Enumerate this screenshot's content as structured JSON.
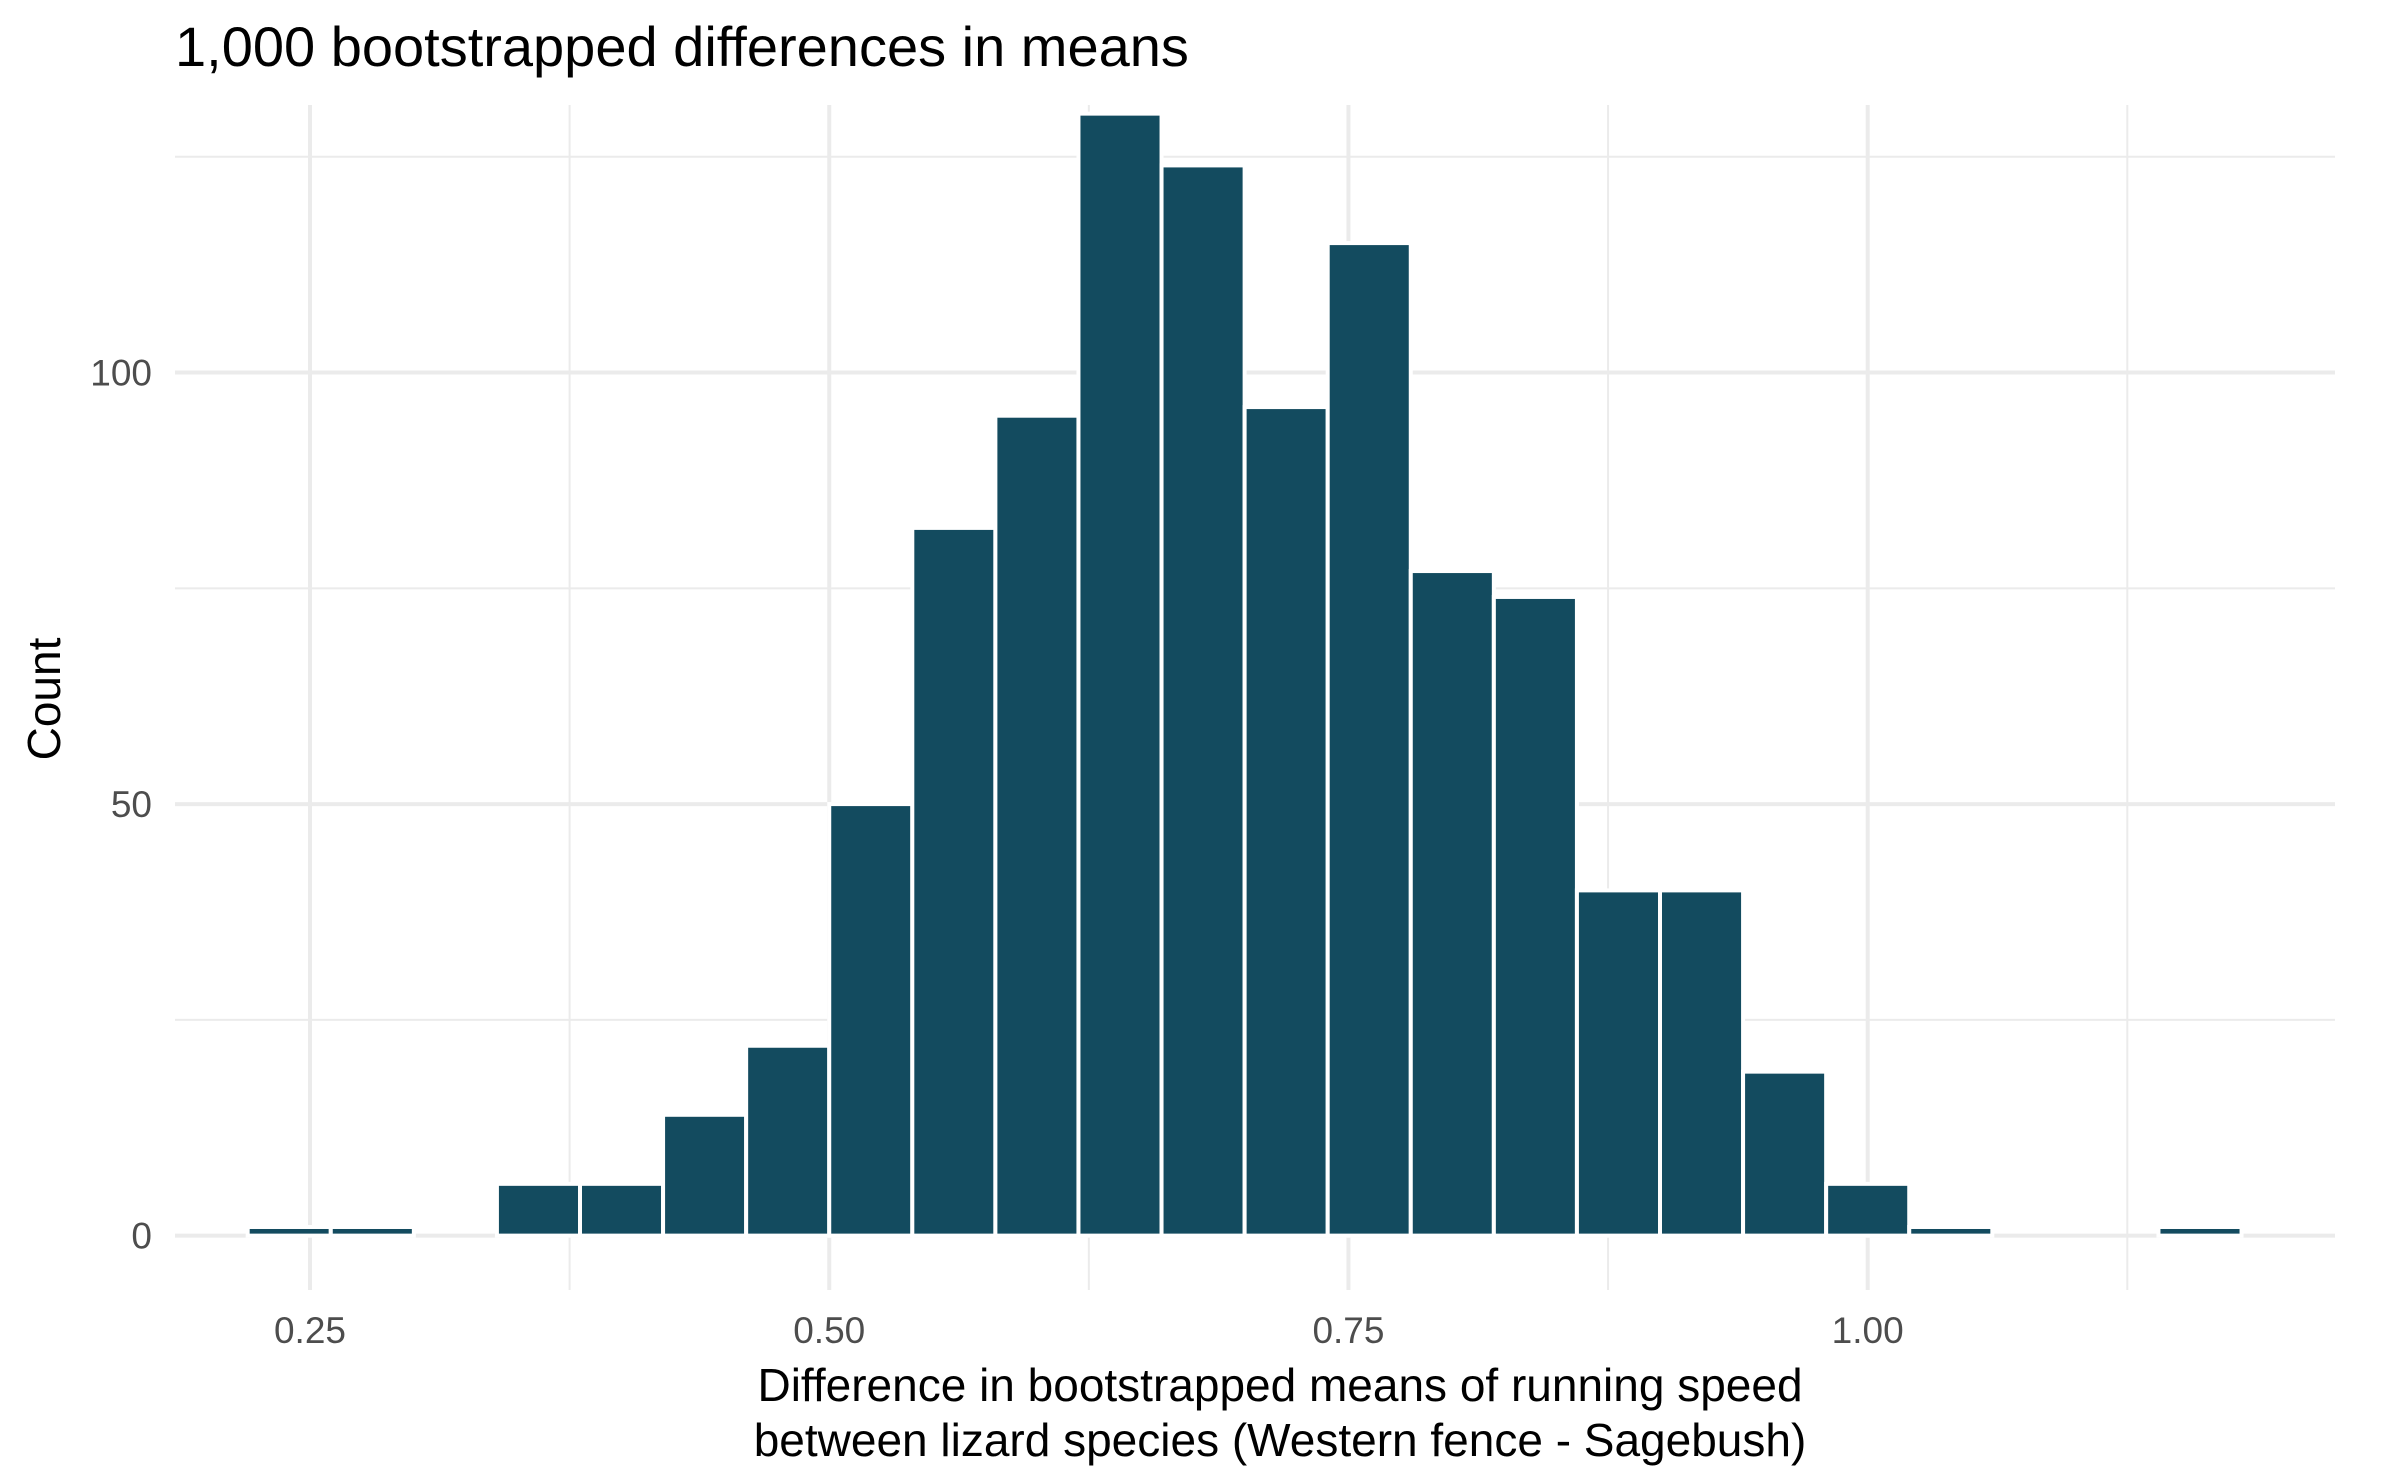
{
  "chart_data": {
    "type": "bar",
    "title": "1,000 bootstrapped differences in means",
    "xlabel": "Difference in bootstrapped means of running speed",
    "xlabel_line2": "between lizard species (Western fence - Sagebush)",
    "ylabel": "Count",
    "xlim": [
      0.185,
      1.225
    ],
    "ylim": [
      -6.3,
      131
    ],
    "x_ticks": [
      0.25,
      0.5,
      0.75,
      1.0
    ],
    "x_tick_labels": [
      "0.25",
      "0.50",
      "0.75",
      "1.00"
    ],
    "x_minor_ticks": [
      0.375,
      0.625,
      0.875,
      1.125
    ],
    "y_ticks": [
      0,
      50,
      100
    ],
    "y_tick_labels": [
      "0",
      "50",
      "100"
    ],
    "y_minor_ticks": [
      25,
      75,
      125
    ],
    "grid": true,
    "bar_color": "#134b5f",
    "bins": [
      {
        "x0": 0.22,
        "x1": 0.26,
        "count": 1
      },
      {
        "x0": 0.26,
        "x1": 0.3,
        "count": 1
      },
      {
        "x0": 0.3,
        "x1": 0.34,
        "count": 0
      },
      {
        "x0": 0.34,
        "x1": 0.38,
        "count": 6
      },
      {
        "x0": 0.38,
        "x1": 0.42,
        "count": 6
      },
      {
        "x0": 0.42,
        "x1": 0.46,
        "count": 14
      },
      {
        "x0": 0.46,
        "x1": 0.5,
        "count": 22
      },
      {
        "x0": 0.5,
        "x1": 0.54,
        "count": 50
      },
      {
        "x0": 0.54,
        "x1": 0.58,
        "count": 82
      },
      {
        "x0": 0.58,
        "x1": 0.62,
        "count": 95
      },
      {
        "x0": 0.62,
        "x1": 0.66,
        "count": 130
      },
      {
        "x0": 0.66,
        "x1": 0.7,
        "count": 124
      },
      {
        "x0": 0.7,
        "x1": 0.74,
        "count": 96
      },
      {
        "x0": 0.74,
        "x1": 0.78,
        "count": 115
      },
      {
        "x0": 0.78,
        "x1": 0.82,
        "count": 77
      },
      {
        "x0": 0.82,
        "x1": 0.86,
        "count": 74
      },
      {
        "x0": 0.86,
        "x1": 0.9,
        "count": 40
      },
      {
        "x0": 0.9,
        "x1": 0.94,
        "count": 40
      },
      {
        "x0": 0.94,
        "x1": 0.98,
        "count": 19
      },
      {
        "x0": 0.98,
        "x1": 1.02,
        "count": 6
      },
      {
        "x0": 1.02,
        "x1": 1.06,
        "count": 1
      },
      {
        "x0": 1.06,
        "x1": 1.1,
        "count": 0
      },
      {
        "x0": 1.1,
        "x1": 1.14,
        "count": 0
      },
      {
        "x0": 1.14,
        "x1": 1.18,
        "count": 1
      }
    ]
  }
}
